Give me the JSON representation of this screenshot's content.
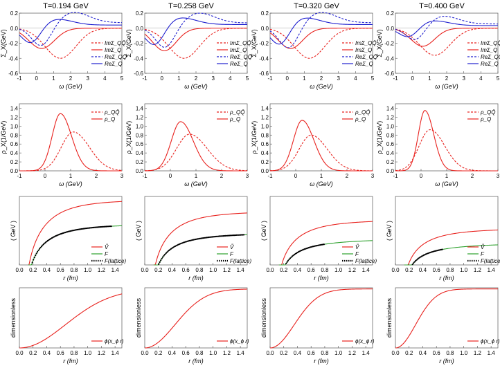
{
  "colors": {
    "red": "#e8211d",
    "blue": "#1f1fcf",
    "green": "#2ca02c",
    "black": "#000000"
  },
  "columns": [
    {
      "title": "T=0.194 GeV"
    },
    {
      "title": "T=0.258 GeV"
    },
    {
      "title": "T=0.320 GeV"
    },
    {
      "title": "T=0.400 GeV"
    }
  ],
  "chart_data": [
    {
      "row": "self-energy",
      "type": "line",
      "xlabel": "ω (GeV)",
      "ylabel": "Σ_X(GeV)",
      "xlim": [
        -1,
        5
      ],
      "ylim": [
        -0.6,
        0.2
      ],
      "xticks": [
        "-1",
        "0",
        "1",
        "2",
        "3",
        "4",
        "5"
      ],
      "yticks": [
        "-0.6",
        "-0.4",
        "-0.2",
        "0.0",
        "0.2"
      ],
      "legend": [
        "ImΣ_QQ̄",
        "ImΣ_Q",
        "ReΣ_QQ̄",
        "ReΣ_Q"
      ],
      "legend_position": "bottom-right",
      "series_per_panel": [
        {
          "ImQQ": {
            "center": 1.4,
            "width": 0.9,
            "min": -0.4
          },
          "ImQ": {
            "center": 0.3,
            "width": 0.75,
            "min": -0.27
          },
          "ReQQ": {
            "peak_x": 2.2,
            "peak": 0.21,
            "trough_x": 0.3,
            "trough": -0.25
          },
          "ReQ": {
            "peak_x": 1.2,
            "peak": 0.12,
            "trough_x": -0.3,
            "trough": -0.22
          }
        },
        {
          "ImQQ": {
            "center": 1.3,
            "width": 0.9,
            "min": -0.4
          },
          "ImQ": {
            "center": 0.15,
            "width": 0.7,
            "min": -0.3
          },
          "ReQQ": {
            "peak_x": 2.2,
            "peak": 0.2,
            "trough_x": 0.2,
            "trough": -0.27
          },
          "ReQ": {
            "peak_x": 1.1,
            "peak": 0.14,
            "trough_x": -0.4,
            "trough": -0.25
          }
        },
        {
          "ImQQ": {
            "center": 1.3,
            "width": 0.9,
            "min": -0.4
          },
          "ImQ": {
            "center": 0.2,
            "width": 0.7,
            "min": -0.27
          },
          "ReQQ": {
            "peak_x": 2.0,
            "peak": 0.21,
            "trough_x": 0.1,
            "trough": -0.28
          },
          "ReQ": {
            "peak_x": 1.0,
            "peak": 0.14,
            "trough_x": -0.4,
            "trough": -0.25
          }
        },
        {
          "ImQQ": {
            "center": 1.3,
            "width": 0.9,
            "min": -0.36
          },
          "ImQ": {
            "center": 0.6,
            "width": 0.7,
            "min": -0.24
          },
          "ReQQ": {
            "peak_x": 1.8,
            "peak": 0.16,
            "trough_x": 0.2,
            "trough": -0.18
          },
          "ReQ": {
            "peak_x": 1.2,
            "peak": 0.1,
            "trough_x": -0.2,
            "trough": -0.14
          }
        }
      ]
    },
    {
      "row": "spectral",
      "type": "line",
      "xlabel": "ω (GeV)",
      "ylabel": "ρ_X(1/GeV)",
      "xlim": [
        -1,
        3
      ],
      "ylim": [
        0,
        1.5
      ],
      "xticks": [
        "-1",
        "0",
        "1",
        "2",
        "3"
      ],
      "yticks": [
        "0.0",
        "0.2",
        "0.4",
        "0.6",
        "0.8",
        "1.0",
        "1.2",
        "1.4"
      ],
      "legend": [
        "ρ_QQ̄",
        "ρ_Q"
      ],
      "legend_position": "top-right",
      "series_per_panel": [
        {
          "rhoQQ": {
            "peak_x": 1.1,
            "peak": 0.87,
            "width": 0.55
          },
          "rhoQ": {
            "peak_x": 0.6,
            "peak": 1.28,
            "width": 0.38
          }
        },
        {
          "rhoQQ": {
            "peak_x": 0.75,
            "peak": 0.82,
            "width": 0.6
          },
          "rhoQ": {
            "peak_x": 0.4,
            "peak": 1.1,
            "width": 0.43
          }
        },
        {
          "rhoQQ": {
            "peak_x": 0.6,
            "peak": 0.8,
            "width": 0.55
          },
          "rhoQ": {
            "peak_x": 0.25,
            "peak": 1.13,
            "width": 0.4
          }
        },
        {
          "rhoQQ": {
            "peak_x": 0.35,
            "peak": 0.92,
            "width": 0.5
          },
          "rhoQ": {
            "peak_x": 0.15,
            "peak": 1.35,
            "width": 0.3
          }
        }
      ]
    },
    {
      "row": "potential",
      "type": "line",
      "xlabel": "r (fm)",
      "ylabel": "( GeV )",
      "xlim": [
        0,
        1.5
      ],
      "ylim": [
        -0.3,
        1.3
      ],
      "xticks": [
        "0.0",
        "0.2",
        "0.4",
        "0.6",
        "0.8",
        "1.0",
        "1.2",
        "1.4"
      ],
      "yticks": [],
      "legend": [
        "Ṽ",
        "F",
        "F(lattice)"
      ],
      "legend_position": "bottom-right",
      "series_per_panel": [
        {
          "V_inf": 1.15,
          "F_inf": 0.58,
          "lattice_max_r": 1.35
        },
        {
          "V_inf": 0.88,
          "F_inf": 0.37,
          "lattice_max_r": 1.45
        },
        {
          "V_inf": 0.68,
          "F_inf": 0.23,
          "lattice_max_r": 0.8
        },
        {
          "V_inf": 0.48,
          "F_inf": 0.13,
          "lattice_max_r": 0.7
        }
      ]
    },
    {
      "row": "wavefunction",
      "type": "line",
      "xlabel": "r (fm)",
      "ylabel": "dimensionless",
      "xlim": [
        0,
        1.5
      ],
      "ylim": [
        0,
        1.02
      ],
      "xticks": [
        "0.0",
        "0.2",
        "0.4",
        "0.6",
        "0.8",
        "1.0",
        "1.2",
        "1.4"
      ],
      "yticks": [],
      "legend": [
        "ϕ(x_ϕ r)"
      ],
      "legend_position": "bottom-right",
      "series_per_panel": [
        {
          "x_phi": 1.05
        },
        {
          "x_phi": 1.6
        },
        {
          "x_phi": 2.0
        },
        {
          "x_phi": 2.4
        }
      ]
    }
  ]
}
